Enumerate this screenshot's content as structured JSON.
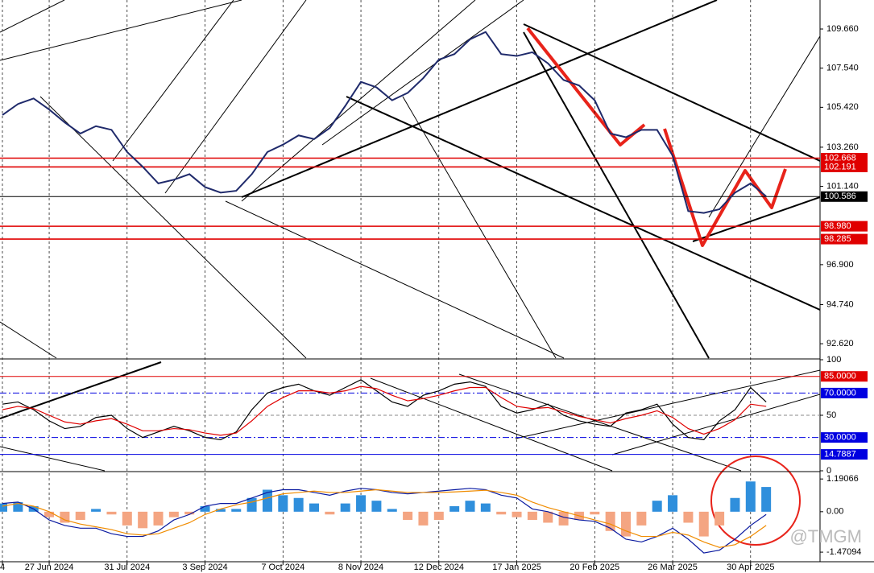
{
  "watermark": "@TMGM",
  "chart_data": [
    {
      "type": "line",
      "categories": [
        "4",
        null,
        null,
        "27 Jun 2024",
        null,
        null,
        null,
        null,
        "31 Jul 2024",
        null,
        null,
        null,
        null,
        "3 Sep 2024",
        null,
        null,
        null,
        null,
        "7 Oct 2024",
        null,
        null,
        null,
        null,
        "8 Nov 2024",
        null,
        null,
        null,
        null,
        "12 Dec 2024",
        null,
        null,
        null,
        null,
        "17 Jan 2025",
        null,
        null,
        null,
        null,
        "20 Feb 2025",
        null,
        null,
        null,
        null,
        "26 Mar 2025",
        null,
        null,
        null,
        null,
        "30 Apr 2025",
        null
      ],
      "series": [
        {
          "color": "#1f2a6b",
          "values": [
            105.0,
            105.6,
            105.9,
            105.3,
            104.6,
            104.0,
            104.4,
            104.2,
            103.0,
            102.2,
            101.3,
            101.5,
            101.8,
            101.1,
            100.8,
            100.9,
            101.8,
            103.0,
            103.4,
            103.9,
            103.7,
            104.3,
            105.5,
            106.8,
            106.5,
            105.8,
            106.2,
            107.0,
            108.0,
            108.3,
            109.1,
            109.5,
            108.3,
            108.2,
            108.4,
            107.8,
            106.9,
            106.6,
            105.8,
            104.0,
            103.8,
            104.2,
            104.2,
            102.8,
            99.8,
            99.7,
            99.9,
            100.8,
            101.3,
            100.6
          ]
        }
      ],
      "ylim": [
        91.84,
        111.23
      ],
      "yticks": [
        {
          "value": 109.66,
          "label": "109.660"
        },
        {
          "value": 107.54,
          "label": "107.540"
        },
        {
          "value": 105.42,
          "label": "105.420"
        },
        {
          "value": 103.26,
          "label": "103.260"
        },
        {
          "value": 101.14,
          "label": "101.140"
        },
        {
          "value": 96.9,
          "label": "96.900"
        },
        {
          "value": 94.74,
          "label": "94.740"
        },
        {
          "value": 92.62,
          "label": "92.620"
        }
      ],
      "levels": [
        {
          "value": 102.668,
          "label": "102.668",
          "color": "#e00000"
        },
        {
          "value": 102.191,
          "label": "102.191",
          "color": "#e00000"
        },
        {
          "value": 100.586,
          "label": "100.586",
          "color": "#000000"
        },
        {
          "value": 98.98,
          "label": "98.980",
          "color": "#e00000"
        },
        {
          "value": 98.285,
          "label": "98.285",
          "color": "#e00000"
        }
      ]
    },
    {
      "type": "line",
      "series": [
        {
          "color": "#000000",
          "values": [
            60,
            62,
            55,
            45,
            38,
            40,
            48,
            50,
            38,
            30,
            35,
            40,
            36,
            30,
            28,
            35,
            55,
            70,
            75,
            78,
            72,
            68,
            75,
            82,
            72,
            62,
            58,
            68,
            72,
            78,
            80,
            76,
            58,
            52,
            55,
            60,
            50,
            45,
            42,
            40,
            52,
            55,
            60,
            42,
            30,
            28,
            45,
            55,
            75,
            62
          ]
        },
        {
          "color": "#e00000",
          "values": [
            55,
            58,
            56,
            50,
            44,
            42,
            45,
            47,
            42,
            36,
            36,
            38,
            37,
            34,
            32,
            34,
            45,
            58,
            66,
            72,
            72,
            70,
            72,
            76,
            74,
            68,
            63,
            65,
            68,
            72,
            75,
            75,
            66,
            58,
            56,
            57,
            53,
            49,
            46,
            43,
            47,
            50,
            54,
            48,
            38,
            33,
            38,
            46,
            60,
            58
          ]
        }
      ],
      "ylim": [
        0,
        100
      ],
      "yticks": [
        100,
        50,
        0
      ],
      "levels": [
        {
          "value": 85,
          "label": "85.0000",
          "color": "#e00000"
        },
        {
          "value": 70,
          "label": "70.0000",
          "color": "#0000e0"
        },
        {
          "value": 30,
          "label": "30.0000",
          "color": "#0000e0"
        },
        {
          "value": 14.7887,
          "label": "14.7887",
          "color": "#0000e0"
        }
      ]
    },
    {
      "type": "combo",
      "values": [
        0.3,
        0.35,
        0.2,
        -0.2,
        -0.4,
        -0.3,
        0.1,
        -0.1,
        -0.5,
        -0.6,
        -0.5,
        -0.2,
        -0.1,
        0.2,
        0.1,
        0.1,
        0.5,
        0.8,
        0.6,
        0.5,
        0.3,
        -0.1,
        0.3,
        0.6,
        0.4,
        0.1,
        -0.3,
        -0.5,
        -0.3,
        0.2,
        0.4,
        0.3,
        -0.1,
        -0.2,
        -0.3,
        -0.4,
        -0.5,
        -0.3,
        -0.1,
        -0.7,
        -0.9,
        -0.5,
        0.4,
        0.6,
        -0.4,
        -0.9,
        -0.5,
        0.5,
        1.1,
        0.9
      ],
      "color": "#2f8fdc",
      "negative_color": "#f4a582",
      "series": [
        {
          "color": "#0a1aa0",
          "values": [
            0.3,
            0.35,
            0.1,
            -0.3,
            -0.5,
            -0.6,
            -0.6,
            -0.8,
            -0.9,
            -0.9,
            -0.7,
            -0.3,
            -0.1,
            0.2,
            0.3,
            0.3,
            0.5,
            0.7,
            0.8,
            0.8,
            0.7,
            0.6,
            0.75,
            0.85,
            0.8,
            0.7,
            0.65,
            0.7,
            0.75,
            0.8,
            0.85,
            0.8,
            0.6,
            0.5,
            0.1,
            0,
            -0.2,
            -0.3,
            -0.35,
            -0.6,
            -1.0,
            -1.1,
            -0.9,
            -0.6,
            -1.0,
            -1.5,
            -1.4,
            -1.0,
            -0.5,
            -0.1
          ]
        },
        {
          "color": "#f08c00",
          "values": [
            0.2,
            0.3,
            0.2,
            0,
            -0.3,
            -0.45,
            -0.55,
            -0.65,
            -0.8,
            -0.85,
            -0.8,
            -0.6,
            -0.4,
            -0.1,
            0.1,
            0.25,
            0.35,
            0.5,
            0.65,
            0.7,
            0.75,
            0.7,
            0.7,
            0.75,
            0.8,
            0.75,
            0.7,
            0.7,
            0.7,
            0.72,
            0.75,
            0.78,
            0.7,
            0.6,
            0.35,
            0.15,
            0,
            -0.15,
            -0.3,
            -0.45,
            -0.7,
            -0.9,
            -0.9,
            -0.75,
            -0.85,
            -1.1,
            -1.3,
            -1.2,
            -0.9,
            -0.5
          ]
        }
      ],
      "ylim": [
        -1.82,
        1.43
      ],
      "yticks": [
        1.19066,
        {
          "value": 0,
          "label": "0.00"
        },
        -1.47094
      ]
    }
  ]
}
